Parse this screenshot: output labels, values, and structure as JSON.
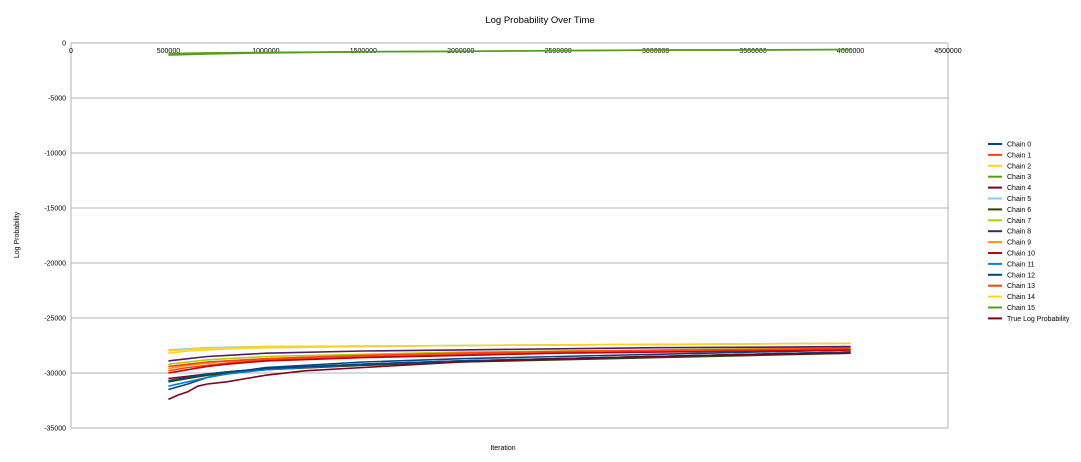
{
  "chart_data": {
    "type": "line",
    "title": "Log Probability Over Time",
    "xlabel": "Iteration",
    "ylabel": "Log Probability",
    "xlim": [
      0,
      4500000
    ],
    "ylim": [
      -35000,
      0
    ],
    "x_ticks": [
      0,
      500000,
      1000000,
      1500000,
      2000000,
      2500000,
      3000000,
      3500000,
      4000000,
      4500000
    ],
    "y_ticks": [
      0,
      -5000,
      -10000,
      -15000,
      -20000,
      -25000,
      -30000,
      -35000
    ],
    "x_tick_labels": [
      "0",
      "500000",
      "1000000",
      "1500000",
      "2000000",
      "2500000",
      "3000000",
      "3500000",
      "4000000",
      "4500000"
    ],
    "y_tick_labels": [
      "0",
      "-5000",
      "-10000",
      "-15000",
      "-20000",
      "-25000",
      "-30000",
      "-35000"
    ],
    "grid": "horizontal",
    "legend": "right",
    "series": [
      {
        "name": "Chain 0",
        "color": "#004586",
        "x": [
          500000,
          600000,
          700000,
          800000,
          1000000,
          1500000,
          2000000,
          2500000,
          3000000,
          3500000,
          4000000
        ],
        "y": [
          -31500,
          -31000,
          -30400,
          -30000,
          -29500,
          -29000,
          -28700,
          -28500,
          -28300,
          -28100,
          -27900
        ]
      },
      {
        "name": "Chain 1",
        "color": "#ff420e",
        "x": [
          500000,
          600000,
          700000,
          800000,
          1000000,
          1500000,
          2000000,
          2500000,
          3000000,
          3500000,
          4000000
        ],
        "y": [
          -29800,
          -29500,
          -29300,
          -29100,
          -28800,
          -28500,
          -28300,
          -28100,
          -28000,
          -27900,
          -27800
        ]
      },
      {
        "name": "Chain 2",
        "color": "#ffd320",
        "x": [
          500000,
          600000,
          700000,
          800000,
          1000000,
          1500000,
          2000000,
          2500000,
          3000000,
          3500000,
          4000000
        ],
        "y": [
          -28200,
          -28000,
          -27900,
          -27800,
          -27700,
          -27600,
          -27500,
          -27450,
          -27400,
          -27350,
          -27300
        ]
      },
      {
        "name": "Chain 3",
        "color": "#579d1c",
        "x": [
          500000,
          700000,
          1000000,
          1500000,
          2000000,
          2500000,
          3000000,
          3500000,
          4000000
        ],
        "y": [
          -1100,
          -1000,
          -900,
          -800,
          -750,
          -700,
          -650,
          -650,
          -600
        ]
      },
      {
        "name": "Chain 4",
        "color": "#7e0021",
        "x": [
          500000,
          600000,
          700000,
          800000,
          1000000,
          1500000,
          2000000,
          2500000,
          3000000,
          3500000,
          4000000
        ],
        "y": [
          -30500,
          -30300,
          -30100,
          -29900,
          -29600,
          -29200,
          -28900,
          -28700,
          -28500,
          -28300,
          -28100
        ]
      },
      {
        "name": "Chain 5",
        "color": "#83caff",
        "x": [
          500000,
          600000,
          700000,
          800000,
          1000000,
          1500000,
          2000000,
          2500000,
          3000000,
          3500000,
          4000000
        ],
        "y": [
          -27900,
          -27800,
          -27700,
          -27650,
          -27600,
          -27550,
          -27500,
          -27450,
          -27400,
          -27350,
          -27300
        ]
      },
      {
        "name": "Chain 6",
        "color": "#314004",
        "x": [
          500000,
          600000,
          700000,
          800000,
          1000000,
          1500000,
          2000000,
          2500000,
          3000000,
          3500000,
          4000000
        ],
        "y": [
          -30800,
          -30500,
          -30200,
          -30000,
          -29700,
          -29300,
          -29000,
          -28800,
          -28600,
          -28400,
          -28200
        ]
      },
      {
        "name": "Chain 7",
        "color": "#aecf00",
        "x": [
          500000,
          600000,
          700000,
          800000,
          1000000,
          1500000,
          2000000,
          2500000,
          3000000,
          3500000,
          4000000
        ],
        "y": [
          -29200,
          -29000,
          -28800,
          -28700,
          -28500,
          -28300,
          -28100,
          -28000,
          -27900,
          -27800,
          -27700
        ]
      },
      {
        "name": "Chain 8",
        "color": "#4b1f6f",
        "x": [
          500000,
          600000,
          700000,
          800000,
          1000000,
          1500000,
          2000000,
          2500000,
          3000000,
          3500000,
          4000000
        ],
        "y": [
          -28900,
          -28700,
          -28500,
          -28400,
          -28200,
          -28000,
          -27900,
          -27800,
          -27700,
          -27650,
          -27600
        ]
      },
      {
        "name": "Chain 9",
        "color": "#ff950e",
        "x": [
          500000,
          600000,
          700000,
          800000,
          1000000,
          1500000,
          2000000,
          2500000,
          3000000,
          3500000,
          4000000
        ],
        "y": [
          -29600,
          -29300,
          -29100,
          -28900,
          -28700,
          -28400,
          -28200,
          -28050,
          -27950,
          -27850,
          -27750
        ]
      },
      {
        "name": "Chain 10",
        "color": "#c5000b",
        "x": [
          500000,
          600000,
          700000,
          800000,
          1000000,
          1500000,
          2000000,
          2500000,
          3000000,
          3500000,
          4000000
        ],
        "y": [
          -30000,
          -29700,
          -29400,
          -29200,
          -28900,
          -28600,
          -28400,
          -28200,
          -28100,
          -28000,
          -27900
        ]
      },
      {
        "name": "Chain 11",
        "color": "#0084d1",
        "x": [
          500000,
          600000,
          700000,
          800000,
          1000000,
          1500000,
          2000000,
          2500000,
          3000000,
          3500000,
          4000000
        ],
        "y": [
          -31200,
          -30800,
          -30400,
          -30100,
          -29700,
          -29200,
          -28900,
          -28700,
          -28500,
          -28300,
          -28100
        ]
      },
      {
        "name": "Chain 12",
        "color": "#004586",
        "x": [
          500000,
          600000,
          700000,
          800000,
          1000000,
          1500000,
          2000000,
          2500000,
          3000000,
          3500000,
          4000000
        ],
        "y": [
          -30700,
          -30400,
          -30100,
          -29900,
          -29600,
          -29200,
          -28900,
          -28700,
          -28500,
          -28300,
          -28100
        ]
      },
      {
        "name": "Chain 13",
        "color": "#ff420e",
        "x": [
          500000,
          600000,
          700000,
          800000,
          1000000,
          1500000,
          2000000,
          2500000,
          3000000,
          3500000,
          4000000
        ],
        "y": [
          -29400,
          -29200,
          -29000,
          -28900,
          -28700,
          -28400,
          -28200,
          -28050,
          -27950,
          -27850,
          -27750
        ]
      },
      {
        "name": "Chain 14",
        "color": "#ffd320",
        "x": [
          500000,
          600000,
          700000,
          800000,
          1000000,
          1500000,
          2000000,
          2500000,
          3000000,
          3500000,
          4000000
        ],
        "y": [
          -28000,
          -27850,
          -27750,
          -27700,
          -27600,
          -27550,
          -27500,
          -27450,
          -27400,
          -27350,
          -27300
        ]
      },
      {
        "name": "Chain 15",
        "color": "#579d1c",
        "x": [
          500000,
          700000,
          1000000,
          1500000,
          2000000,
          2500000,
          3000000,
          3500000,
          4000000
        ],
        "y": [
          -950,
          -900,
          -850,
          -800,
          -750,
          -700,
          -650,
          -620,
          -600
        ]
      },
      {
        "name": "True Log Probability",
        "color": "#7e0021",
        "x": [
          500000,
          550000,
          600000,
          650000,
          700000,
          800000,
          900000,
          1000000,
          1200000,
          1500000,
          2000000,
          2500000,
          3000000,
          3500000,
          4000000
        ],
        "y": [
          -32400,
          -32000,
          -31700,
          -31200,
          -31000,
          -30800,
          -30500,
          -30200,
          -29800,
          -29500,
          -29000,
          -28700,
          -28500,
          -28300,
          -28200
        ]
      }
    ]
  }
}
